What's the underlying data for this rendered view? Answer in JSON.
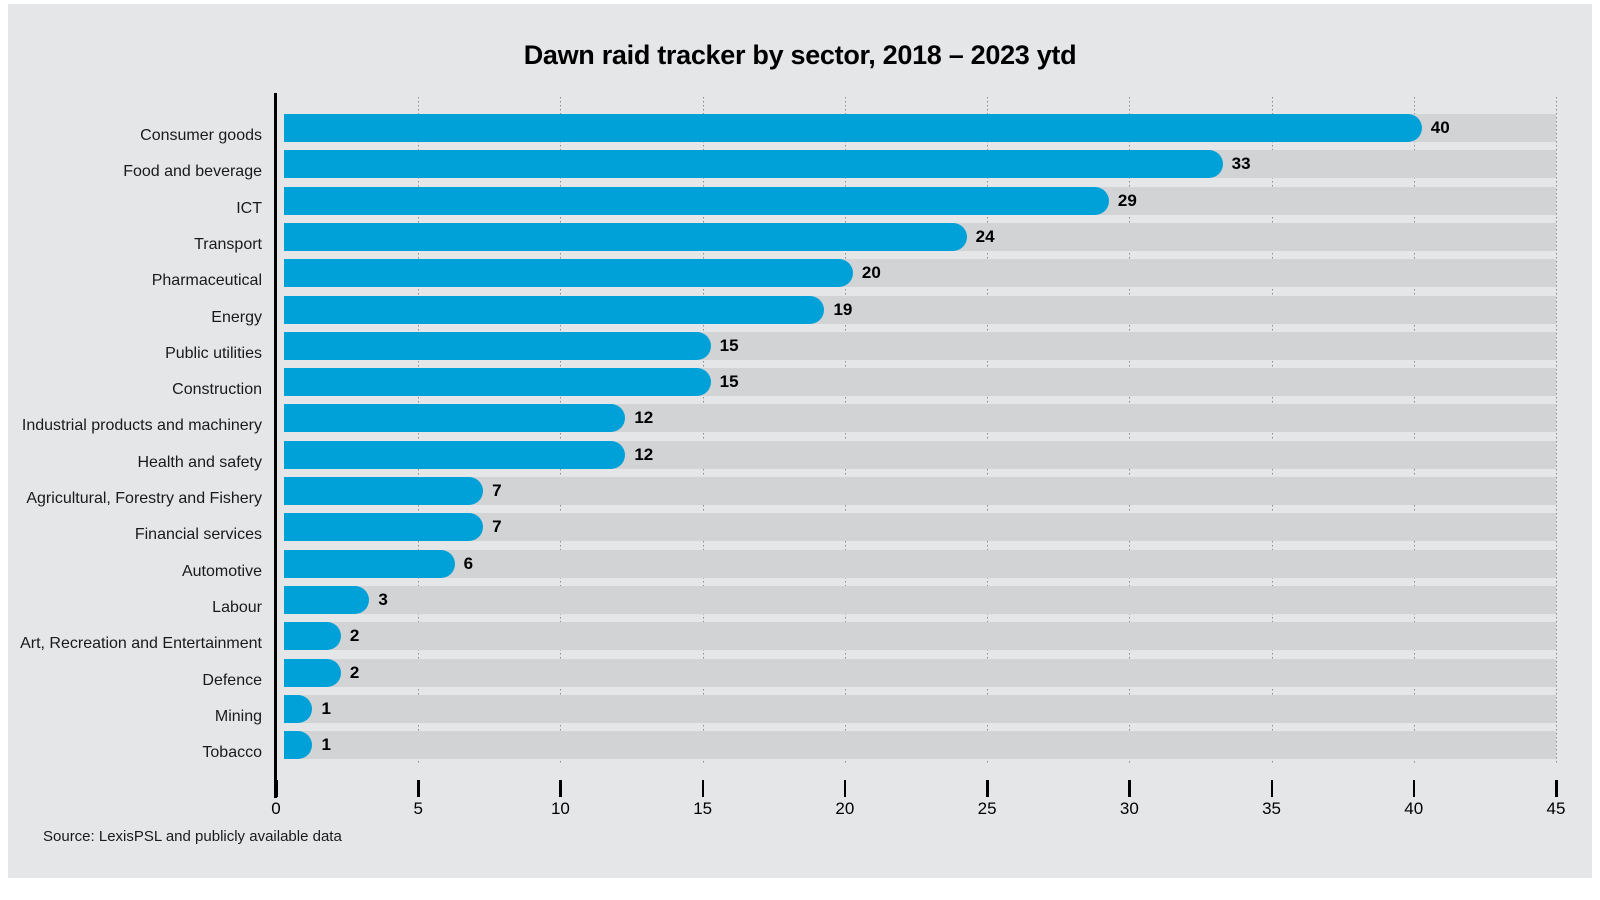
{
  "title": "Dawn raid tracker by sector, 2018 – 2023 ytd",
  "source": "Source: LexisPSL and publicly available data",
  "colors": {
    "page_background": "#ffffff",
    "canvas_background": "#e5e6e8",
    "bar": "#00a1d9",
    "track": "#d2d3d5",
    "axis": "#000000",
    "grid": "#8d8e90",
    "text": "#000000"
  },
  "chart_data": {
    "type": "bar",
    "orientation": "horizontal",
    "title": "Dawn raid tracker by sector, 2018 – 2023 ytd",
    "categories": [
      "Consumer goods",
      "Food and beverage",
      "ICT",
      "Transport",
      "Pharmaceutical",
      "Energy",
      "Public utilities",
      "Construction",
      "Industrial products and machinery",
      "Health and safety",
      "Agricultural, Forestry and Fishery",
      "Financial services",
      "Automotive",
      "Labour",
      "Art, Recreation and Entertainment",
      "Defence",
      "Mining",
      "Tobacco"
    ],
    "values": [
      40,
      33,
      29,
      24,
      20,
      19,
      15,
      15,
      12,
      12,
      7,
      7,
      6,
      3,
      2,
      2,
      1,
      1
    ],
    "xlabel": "",
    "ylabel": "",
    "xlim": [
      0,
      45
    ],
    "xticks": [
      0,
      5,
      10,
      15,
      20,
      25,
      30,
      35,
      40,
      45
    ],
    "grid": "vertical dotted gridlines at each x tick",
    "legend": "none",
    "data_labels": "value shown in bold at end of each bar",
    "source": "Source: LexisPSL and publicly available data"
  }
}
